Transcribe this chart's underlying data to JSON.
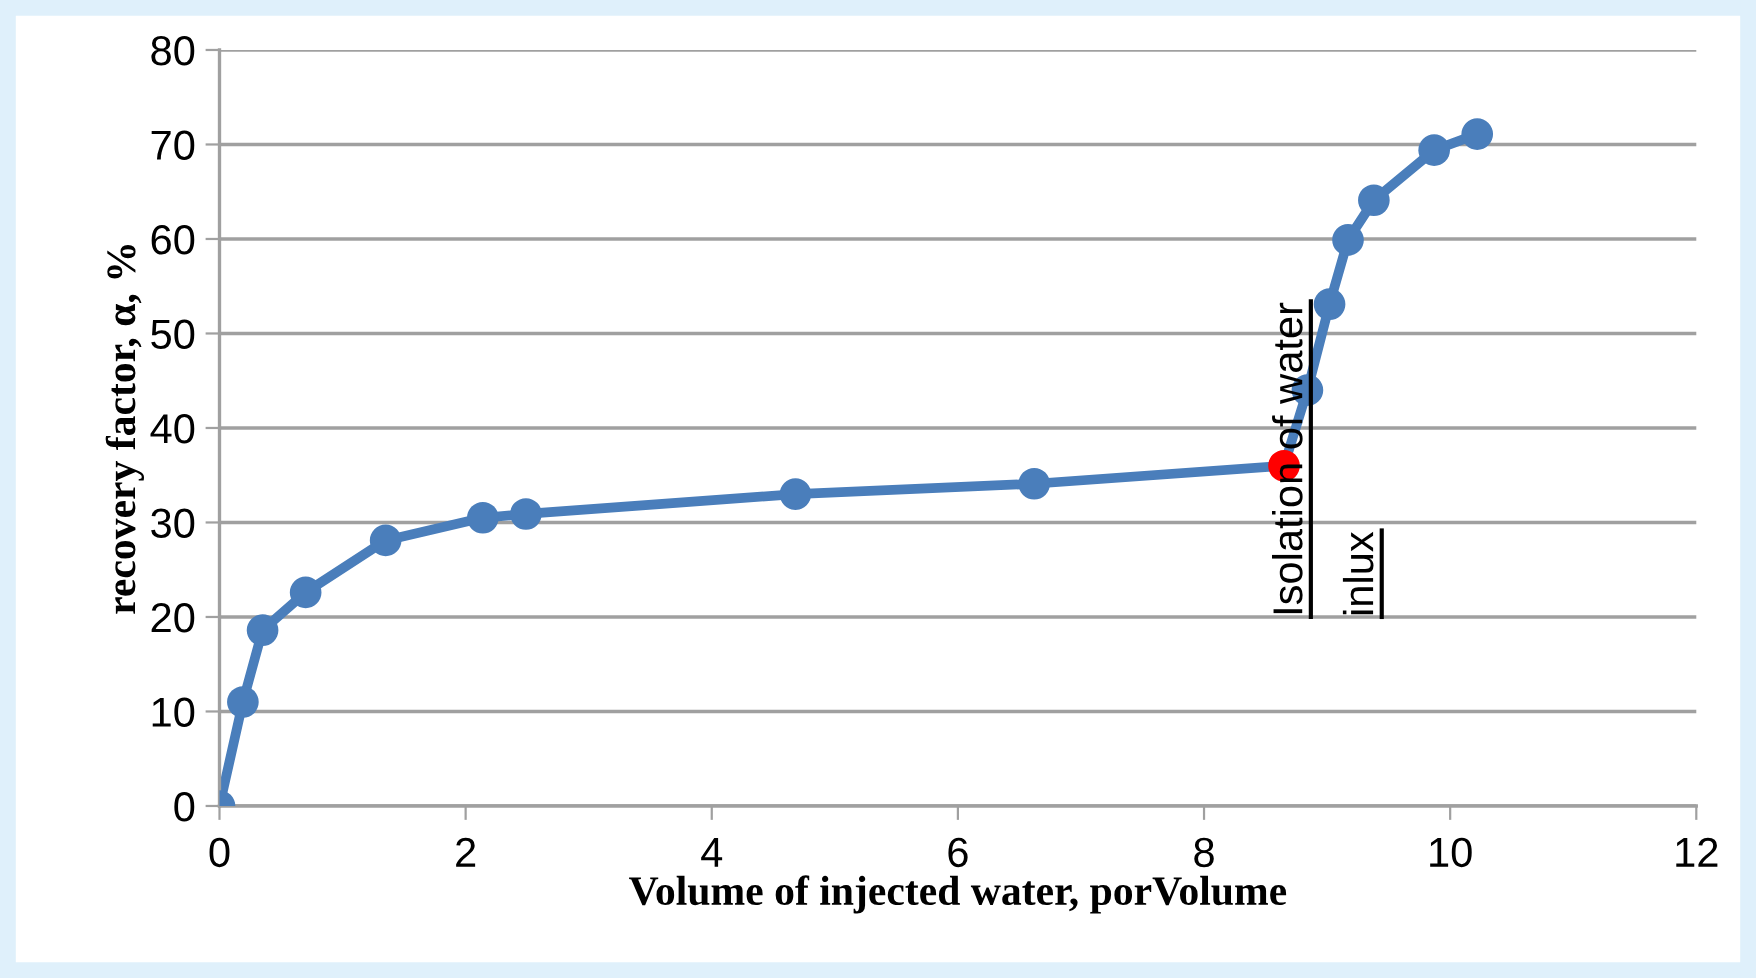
{
  "chart_data": {
    "type": "line",
    "xlabel": "Volume of injected water, porVolume",
    "ylabel": "recovery factor, α, %",
    "xlim": [
      0,
      12
    ],
    "xticks": [
      0,
      2,
      4,
      6,
      8,
      10,
      12
    ],
    "ylim": [
      0,
      80
    ],
    "yticks": [
      0,
      10,
      20,
      30,
      40,
      50,
      60,
      70,
      80
    ],
    "grid": "y",
    "marker": "circle",
    "line_style": "solid",
    "series": [
      {
        "color": "#4a7ebb",
        "x": [
          0,
          0.19,
          0.35,
          0.7,
          1.35,
          2.14,
          2.49,
          4.68,
          6.62,
          8.65,
          8.84,
          9.02,
          9.17,
          9.38,
          9.87,
          10.22
        ],
        "values": [
          0,
          11.0,
          18.6,
          22.6,
          28.1,
          30.5,
          30.9,
          33.0,
          34.1,
          36.0,
          44.0,
          53.1,
          59.9,
          64.1,
          69.4,
          71.1
        ],
        "colors": [
          "#4a7ebb",
          "#4a7ebb",
          "#4a7ebb",
          "#4a7ebb",
          "#4a7ebb",
          "#4a7ebb",
          "#4a7ebb",
          "#4a7ebb",
          "#4a7ebb",
          "#ff0000",
          "#4a7ebb",
          "#4a7ebb",
          "#4a7ebb",
          "#4a7ebb",
          "#4a7ebb",
          "#4a7ebb"
        ]
      }
    ],
    "annotations": [
      "Isolation of water",
      "inlux"
    ]
  }
}
